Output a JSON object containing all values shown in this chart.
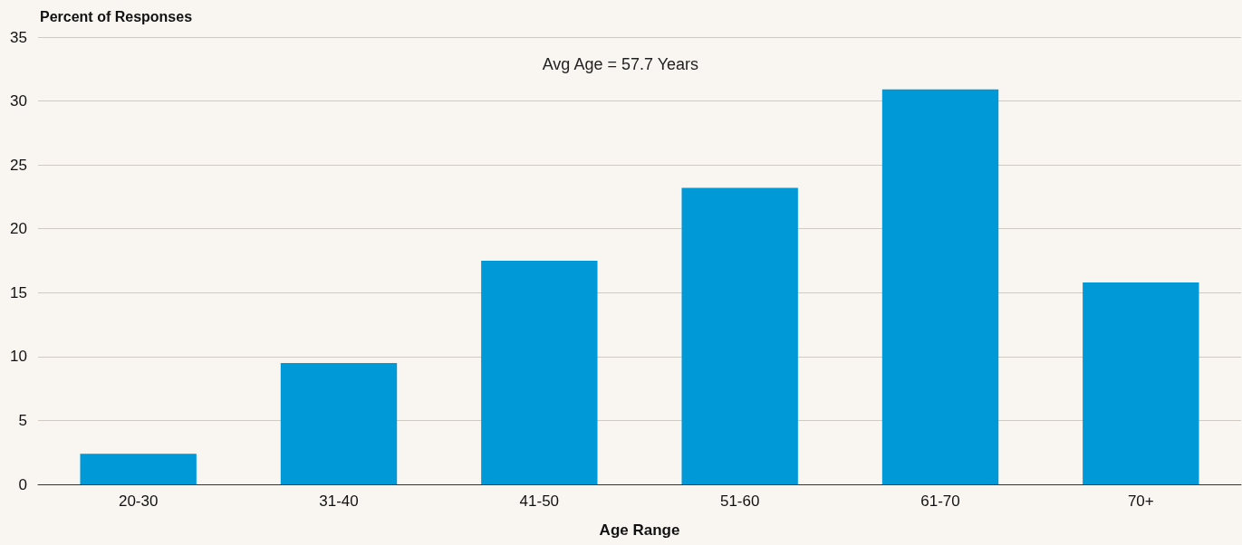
{
  "chart_data": {
    "type": "bar",
    "ylabel": "Percent of Responses",
    "xlabel": "Age Range",
    "annotations": [
      "Avg Age = 57.7 Years"
    ],
    "categories": [
      "20-30",
      "31-40",
      "41-50",
      "51-60",
      "61-70",
      "70+"
    ],
    "values": [
      2.4,
      9.5,
      17.5,
      23.2,
      30.9,
      15.8
    ],
    "color": "#0099d8",
    "ylim": [
      0,
      35
    ],
    "yticks": [
      0,
      5,
      10,
      15,
      20,
      25,
      30,
      35
    ],
    "grid": "y"
  }
}
